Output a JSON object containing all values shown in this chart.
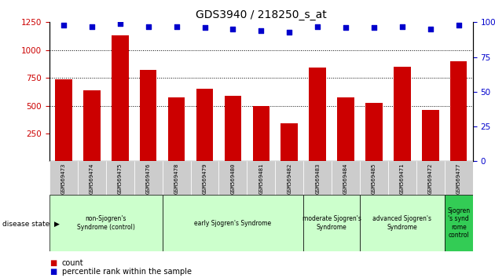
{
  "title": "GDS3940 / 218250_s_at",
  "samples": [
    "GSM569473",
    "GSM569474",
    "GSM569475",
    "GSM569476",
    "GSM569478",
    "GSM569479",
    "GSM569480",
    "GSM569481",
    "GSM569482",
    "GSM569483",
    "GSM569484",
    "GSM569485",
    "GSM569471",
    "GSM569472",
    "GSM569477"
  ],
  "counts": [
    735,
    635,
    1130,
    820,
    575,
    650,
    585,
    500,
    340,
    840,
    575,
    525,
    850,
    460,
    900
  ],
  "percentile_ranks": [
    98,
    97,
    99,
    97,
    97,
    96,
    95,
    94,
    93,
    97,
    96,
    96,
    97,
    95,
    98
  ],
  "bar_color": "#cc0000",
  "dot_color": "#0000cc",
  "ylim_left": [
    0,
    1250
  ],
  "ylim_right": [
    0,
    100
  ],
  "yticks_left": [
    250,
    500,
    750,
    1000,
    1250
  ],
  "yticks_right": [
    0,
    25,
    50,
    75,
    100
  ],
  "group_defs": [
    {
      "label": "non-Sjogren's\nSyndrome (control)",
      "start": 0,
      "end": 3,
      "color": "#ccffcc"
    },
    {
      "label": "early Sjogren's Syndrome",
      "start": 4,
      "end": 8,
      "color": "#ccffcc"
    },
    {
      "label": "moderate Sjogren's\nSyndrome",
      "start": 9,
      "end": 10,
      "color": "#ccffcc"
    },
    {
      "label": "advanced Sjogren's\nSyndrome",
      "start": 11,
      "end": 13,
      "color": "#ccffcc"
    },
    {
      "label": "Sjogren\n's synd\nrome\ncontrol",
      "start": 14,
      "end": 14,
      "color": "#33cc55"
    }
  ],
  "legend_count_label": "count",
  "legend_pct_label": "percentile rank within the sample",
  "disease_state_label": "disease state"
}
